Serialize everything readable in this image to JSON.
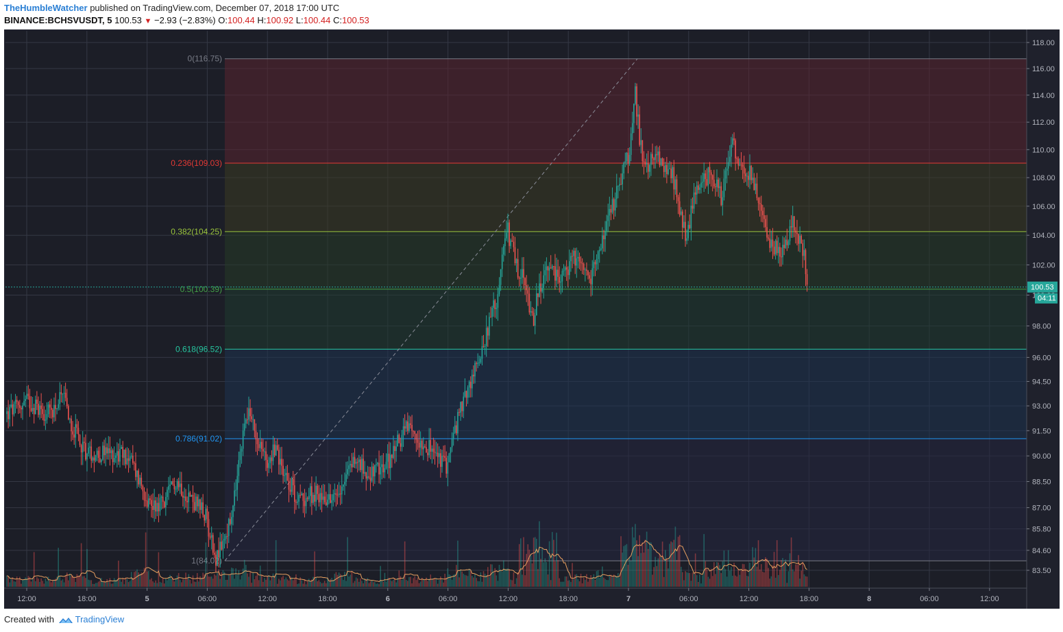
{
  "header": {
    "author": "TheHumbleWatcher",
    "published_text": " published on TradingView.com, December 07, 2018 17:00 UTC",
    "symbol": "BINANCE:BCHSVUSDT, 5",
    "last": "100.53",
    "change": "−2.93 (−2.83%)",
    "o_label": "O:",
    "o_value": "100.44",
    "h_label": "H:",
    "h_value": "100.92",
    "l_label": "L:",
    "l_value": "100.44",
    "c_label": "C:",
    "c_value": "100.53",
    "down_icon": "triangle-down-icon"
  },
  "footer": {
    "created_with": "Created with",
    "brand": "TradingView",
    "logo_icon": "tradingview-logo-icon"
  },
  "colors": {
    "background": "#1f212c",
    "up": "#26a69a",
    "down": "#ef5350",
    "grid": "#363a45"
  },
  "chart_data": {
    "type": "candlestick",
    "symbol": "BINANCE:BCHSVUSDT",
    "interval": "5",
    "last_price": 100.53,
    "countdown": "04:11",
    "y_axis": {
      "scale": "log",
      "ticks": [
        "118.00",
        "116.00",
        "114.00",
        "112.00",
        "110.00",
        "108.00",
        "106.00",
        "104.00",
        "102.00",
        "100.00",
        "98.00",
        "96.00",
        "94.50",
        "93.00",
        "91.50",
        "90.00",
        "88.50",
        "87.00",
        "85.80",
        "84.60",
        "83.50"
      ]
    },
    "x_axis": {
      "ticks": [
        "12:00",
        "18:00",
        "5",
        "06:00",
        "12:00",
        "18:00",
        "6",
        "06:00",
        "12:00",
        "18:00",
        "7",
        "06:00",
        "12:00",
        "18:00",
        "8",
        "06:00",
        "12:00"
      ],
      "bold_ticks": [
        "5",
        "6",
        "7",
        "8"
      ]
    },
    "fibonacci": {
      "levels": [
        {
          "ratio": "0",
          "price": 116.75,
          "label": "0(116.75)",
          "color": "#787b86"
        },
        {
          "ratio": "0.236",
          "price": 109.03,
          "label": "0.236(109.03)",
          "color": "#e53935"
        },
        {
          "ratio": "0.382",
          "price": 104.25,
          "label": "0.382(104.25)",
          "color": "#9bc53d"
        },
        {
          "ratio": "0.5",
          "price": 100.39,
          "label": "0.5(100.39)",
          "color": "#43a047"
        },
        {
          "ratio": "0.618",
          "price": 96.52,
          "label": "0.618(96.52)",
          "color": "#26c6a0"
        },
        {
          "ratio": "0.786",
          "price": 91.02,
          "label": "0.786(91.02)",
          "color": "#2196f3"
        },
        {
          "ratio": "1",
          "price": 84.02,
          "label": "1(84.02)",
          "color": "#787b86"
        }
      ],
      "zone_fills": [
        "#5a2430",
        "#3a3a22",
        "#263a26",
        "#1f3a30",
        "#1e3350",
        "#25263f"
      ]
    },
    "price_path_time_fraction": [
      0,
      0.02,
      0.04,
      0.055,
      0.065,
      0.078,
      0.095,
      0.11,
      0.12,
      0.14,
      0.155,
      0.165,
      0.195,
      0.205,
      0.22,
      0.235,
      0.255,
      0.262,
      0.275,
      0.285,
      0.3,
      0.32,
      0.34,
      0.355,
      0.37,
      0.39,
      0.41,
      0.43,
      0.445,
      0.46,
      0.48,
      0.49,
      0.5,
      0.505,
      0.51,
      0.515,
      0.52,
      0.53,
      0.545,
      0.555,
      0.57,
      0.585,
      0.6,
      0.61,
      0.615,
      0.62,
      0.625,
      0.635,
      0.65,
      0.665,
      0.675,
      0.69,
      0.7,
      0.71,
      0.72,
      0.73,
      0.745,
      0.76,
      0.77,
      0.78,
      0.785
    ],
    "price_path": [
      92.5,
      93.3,
      92.5,
      93.5,
      91.6,
      90.2,
      90.1,
      90.1,
      89.9,
      87.2,
      87.3,
      88.6,
      86.5,
      84.1,
      86.3,
      92.8,
      89.6,
      90.5,
      88.7,
      87.4,
      87.8,
      87.5,
      89.8,
      88.9,
      89.3,
      91.6,
      90.7,
      89.4,
      92.9,
      95.5,
      99.8,
      104.5,
      101.5,
      101.2,
      99.7,
      98.2,
      100.4,
      101.5,
      101.0,
      102.4,
      100.8,
      104.0,
      107.6,
      109.8,
      114.5,
      110.5,
      108.4,
      109.5,
      108.7,
      104.0,
      107.0,
      108.5,
      106.5,
      110.5,
      108.5,
      108.2,
      103.5,
      102.8,
      104.8,
      102.8,
      100.53
    ],
    "volume_note": "volume histogram with moving average overlay at bottom of chart"
  }
}
